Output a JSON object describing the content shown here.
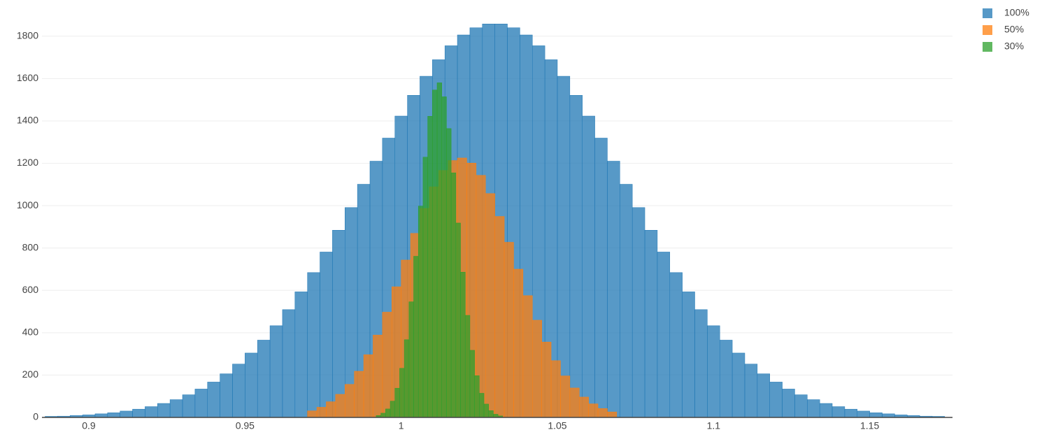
{
  "chart_data": {
    "type": "histogram",
    "xlim": [
      0.885,
      1.1765
    ],
    "ylim": [
      0,
      1905
    ],
    "xticks": [
      0.9,
      0.95,
      1,
      1.05,
      1.1,
      1.15
    ],
    "yticks": [
      0,
      200,
      400,
      600,
      800,
      1000,
      1200,
      1400,
      1600,
      1800
    ],
    "grid": true,
    "legend": "top-right",
    "series": [
      {
        "name": "100%",
        "color": "#1f77b4",
        "bins": [
          0.886,
          0.89,
          0.894,
          0.898,
          0.902,
          0.906,
          0.91,
          0.914,
          0.918,
          0.922,
          0.926,
          0.93,
          0.934,
          0.938,
          0.942,
          0.946,
          0.95,
          0.954,
          0.958,
          0.962,
          0.966,
          0.97,
          0.974,
          0.978,
          0.982,
          0.986,
          0.99,
          0.994,
          0.998,
          1.002,
          1.006,
          1.01,
          1.014,
          1.018,
          1.022,
          1.026,
          1.03,
          1.034,
          1.038,
          1.042,
          1.046,
          1.05,
          1.054,
          1.058,
          1.062,
          1.066,
          1.07,
          1.074,
          1.078,
          1.082,
          1.086,
          1.09,
          1.094,
          1.098,
          1.102,
          1.106,
          1.11,
          1.114,
          1.118,
          1.122,
          1.126,
          1.13,
          1.134,
          1.138,
          1.142,
          1.146,
          1.15,
          1.154,
          1.158,
          1.162,
          1.166,
          1.17,
          1.174
        ],
        "values": [
          5,
          6,
          9,
          12,
          17,
          22,
          30,
          39,
          51,
          66,
          84,
          107,
          134,
          167,
          206,
          252,
          304,
          365,
          433,
          509,
          593,
          684,
          781,
          884,
          991,
          1101,
          1210,
          1319,
          1423,
          1521,
          1611,
          1689,
          1755,
          1806,
          1840,
          1858,
          1858,
          1840,
          1806,
          1755,
          1689,
          1611,
          1521,
          1423,
          1319,
          1210,
          1101,
          991,
          884,
          781,
          684,
          593,
          509,
          433,
          365,
          304,
          252,
          206,
          167,
          134,
          107,
          84,
          66,
          51,
          39,
          30,
          22,
          17,
          12,
          9,
          6,
          5
        ]
      },
      {
        "name": "50%",
        "color": "#ff7f0e",
        "bins": [
          0.97,
          0.973,
          0.976,
          0.979,
          0.982,
          0.985,
          0.988,
          0.991,
          0.994,
          0.997,
          1.0,
          1.003,
          1.006,
          1.009,
          1.012,
          1.015,
          1.018,
          1.021,
          1.024,
          1.027,
          1.03,
          1.033,
          1.036,
          1.039,
          1.042,
          1.045,
          1.048,
          1.051,
          1.054,
          1.057,
          1.06,
          1.063,
          1.066,
          1.069
        ],
        "values": [
          31,
          48,
          74,
          109,
          156,
          218,
          296,
          389,
          497,
          617,
          743,
          869,
          987,
          1089,
          1166,
          1213,
          1225,
          1201,
          1143,
          1057,
          949,
          827,
          700,
          575,
          459,
          356,
          268,
          196,
          139,
          96,
          64,
          42,
          26
        ]
      },
      {
        "name": "30%",
        "color": "#2ca02c",
        "bins": [
          0.992,
          0.9935,
          0.995,
          0.9965,
          0.998,
          0.9995,
          1.001,
          1.0025,
          1.004,
          1.0055,
          1.007,
          1.0085,
          1.01,
          1.0115,
          1.013,
          1.0145,
          1.016,
          1.0175,
          1.019,
          1.0205,
          1.022,
          1.0235,
          1.025,
          1.0265,
          1.028,
          1.0295,
          1.031,
          1.0325
        ],
        "values": [
          9,
          20,
          40,
          77,
          138,
          232,
          367,
          546,
          761,
          998,
          1229,
          1422,
          1546,
          1580,
          1514,
          1364,
          1155,
          918,
          686,
          482,
          317,
          197,
          114,
          63,
          32,
          15,
          7
        ]
      }
    ]
  }
}
